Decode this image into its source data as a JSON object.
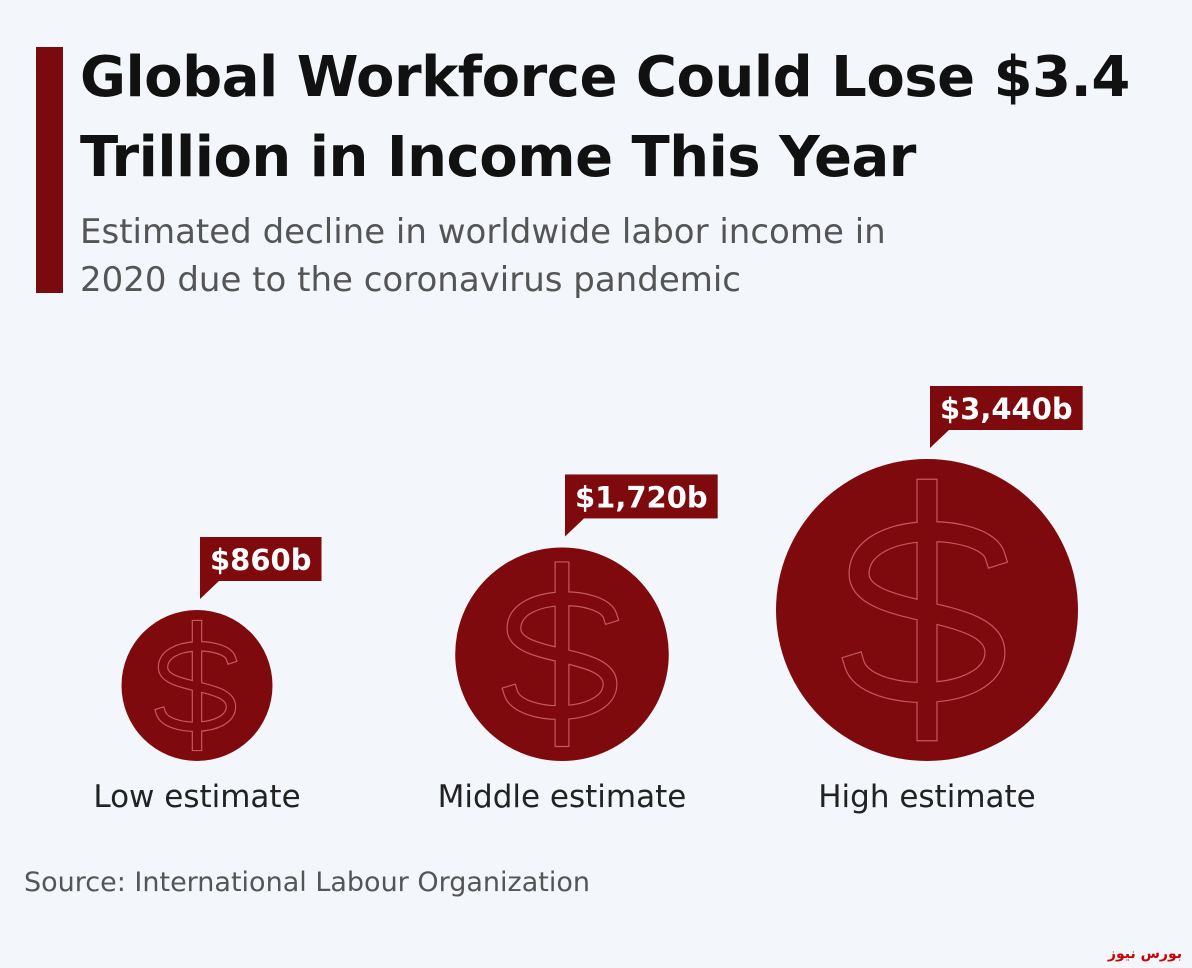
{
  "chart_data": {
    "type": "bubble",
    "title": "Global Workforce Could Lose $3.4 Trillion in Income This Year",
    "subtitle": "Estimated decline in worldwide labor income in 2020 due to the coronavirus pandemic",
    "categories": [
      "Low estimate",
      "Middle estimate",
      "High estimate"
    ],
    "values": [
      860,
      1720,
      3440
    ],
    "value_labels": [
      "$860b",
      "$1,720b",
      "$3,440b"
    ],
    "color": "#7f0a0e",
    "source": "Source: International Labour Organization",
    "watermark": "بورس نیوز"
  }
}
